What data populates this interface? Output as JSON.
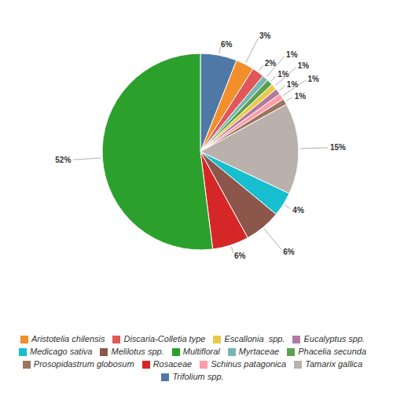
{
  "chart_data": {
    "type": "pie",
    "categories": [
      "Trifolium spp.",
      "Aristotelia chilensis",
      "Discaria-Colletia type",
      "Myrtaceae",
      "Phacelia secunda",
      "Escallonia  spp.",
      "Eucalyptus spp.",
      "Schinus patagonica",
      "Prosopidastrum globosum",
      "Tamarix gallica",
      "Medicago sativa",
      "Melilotus spp.",
      "Rosaceae",
      "Multifloral"
    ],
    "values": [
      6,
      3,
      2,
      1,
      1,
      1,
      1,
      1,
      1,
      15,
      4,
      6,
      6,
      52
    ],
    "value_labels": [
      "6%",
      "3%",
      "2%",
      "1%",
      "1%",
      "1%",
      "1%",
      "1%",
      "1%",
      "15%",
      "4%",
      "6%",
      "6%",
      "52%"
    ],
    "colors": [
      "#4e79a7",
      "#f28e2b",
      "#e15759",
      "#76b7b2",
      "#59a14f",
      "#edc948",
      "#b07aa1",
      "#ff9da7",
      "#9c755f",
      "#bab0ac",
      "#17becf",
      "#8c564b",
      "#d62728",
      "#2ca02c"
    ],
    "data_labels": true,
    "legend": "bottom"
  }
}
